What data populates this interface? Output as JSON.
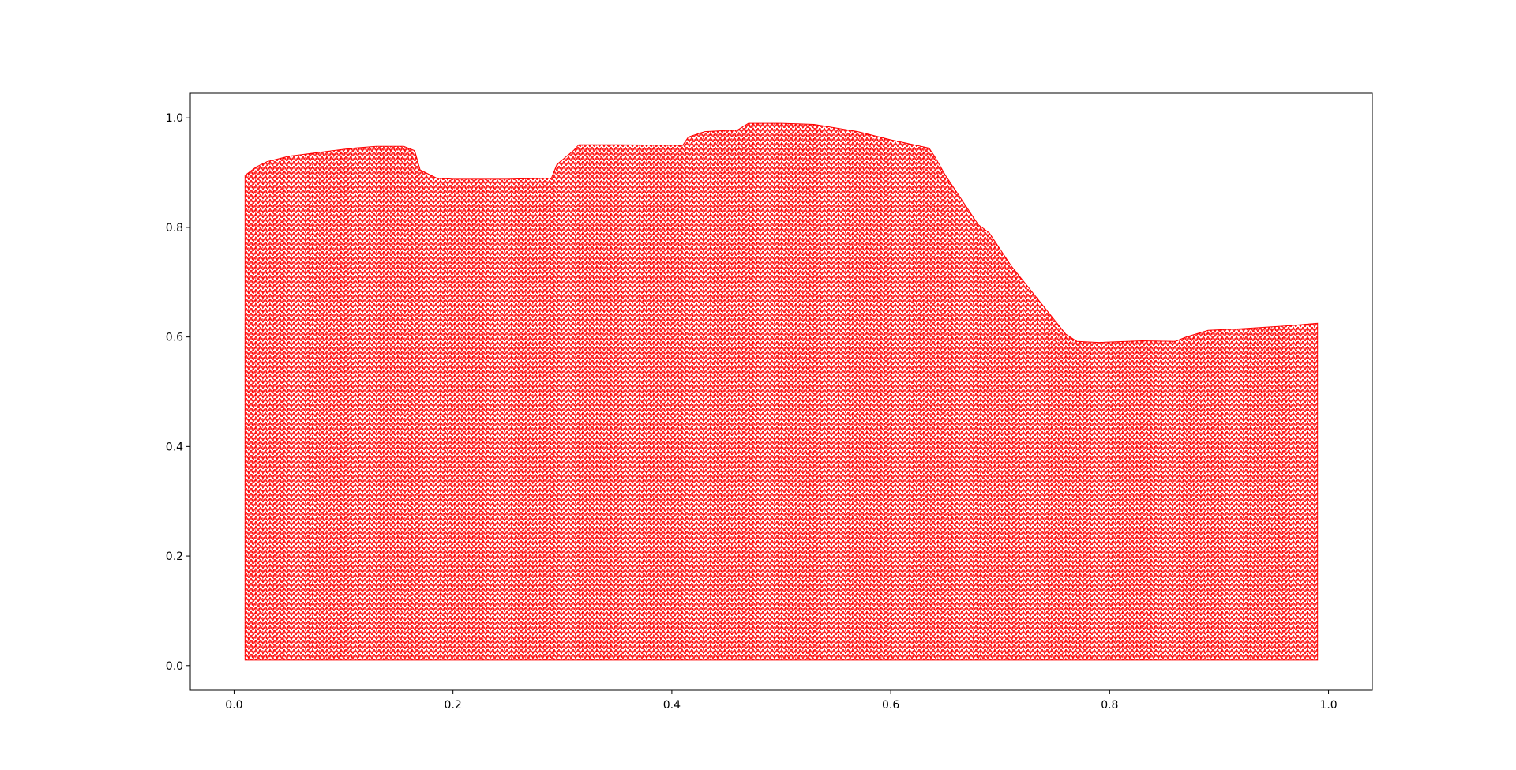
{
  "chart_data": {
    "type": "area",
    "title": "",
    "xlabel": "",
    "ylabel": "",
    "xlim": [
      -0.04,
      1.04
    ],
    "ylim": [
      -0.045,
      1.045
    ],
    "grid": false,
    "fill_color": "#ff0000",
    "line_color": "#ff0000",
    "hatching": "dense dotted red vertical/zigzag lines forming a filled region",
    "x_ticks": [
      {
        "value": 0.0,
        "label": "0.0"
      },
      {
        "value": 0.2,
        "label": "0.2"
      },
      {
        "value": 0.4,
        "label": "0.4"
      },
      {
        "value": 0.6,
        "label": "0.6"
      },
      {
        "value": 0.8,
        "label": "0.8"
      },
      {
        "value": 1.0,
        "label": "1.0"
      }
    ],
    "y_ticks": [
      {
        "value": 0.0,
        "label": "0.0"
      },
      {
        "value": 0.2,
        "label": "0.2"
      },
      {
        "value": 0.4,
        "label": "0.4"
      },
      {
        "value": 0.6,
        "label": "0.6"
      },
      {
        "value": 0.8,
        "label": "0.8"
      },
      {
        "value": 1.0,
        "label": "1.0"
      }
    ],
    "baseline": 0.01,
    "series": [
      {
        "x": [
          0.01,
          0.02,
          0.03,
          0.05,
          0.07,
          0.09,
          0.11,
          0.13,
          0.155,
          0.165,
          0.17,
          0.185,
          0.2,
          0.25,
          0.29,
          0.295,
          0.31,
          0.315,
          0.35,
          0.41,
          0.415,
          0.43,
          0.46,
          0.47,
          0.5,
          0.53,
          0.57,
          0.6,
          0.635,
          0.64,
          0.65,
          0.66,
          0.67,
          0.68,
          0.69,
          0.7,
          0.71,
          0.72,
          0.73,
          0.74,
          0.75,
          0.76,
          0.77,
          0.79,
          0.83,
          0.86,
          0.87,
          0.89,
          0.92,
          0.96,
          0.99
        ],
        "y": [
          0.895,
          0.91,
          0.92,
          0.93,
          0.935,
          0.94,
          0.945,
          0.948,
          0.948,
          0.94,
          0.905,
          0.89,
          0.888,
          0.888,
          0.89,
          0.915,
          0.94,
          0.951,
          0.951,
          0.95,
          0.965,
          0.975,
          0.978,
          0.99,
          0.99,
          0.988,
          0.975,
          0.96,
          0.945,
          0.93,
          0.895,
          0.865,
          0.835,
          0.805,
          0.79,
          0.76,
          0.73,
          0.705,
          0.68,
          0.655,
          0.63,
          0.605,
          0.592,
          0.59,
          0.593,
          0.592,
          0.6,
          0.612,
          0.615,
          0.62,
          0.625
        ]
      }
    ]
  }
}
